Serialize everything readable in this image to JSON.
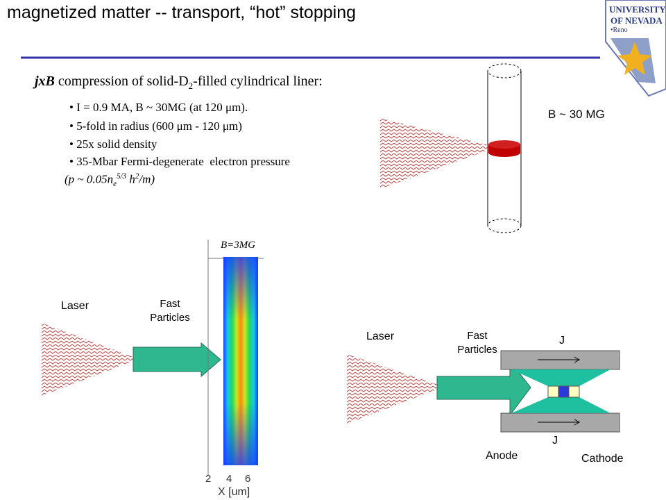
{
  "header": {
    "title": "magnetized matter -- transport, “hot” stopping",
    "logo": [
      "UNIVERSITY",
      "OF NEVADA",
      "•Reno"
    ]
  },
  "summary": {
    "heading": [
      "jxB",
      " compression of solid-D",
      "2",
      "-filled cylindrical liner:"
    ],
    "bullets": [
      "• I = 0.9 MA, B ~ 30MG (at 120 μm).",
      "• 5-fold in radius (600 μm - 120 μm)",
      "• 25x solid density",
      "• 35-Mbar Fermi-degenerate  electron pressure"
    ],
    "pressure": [
      "(p ~ 0.05n",
      "e",
      "5/3",
      " h",
      "2",
      "/m)"
    ]
  },
  "liner_diagram": {
    "field_label": "B ~ 30 MG"
  },
  "simulation": {
    "laser_label": "Laser",
    "particles_label": "Fast Particles",
    "field_label": "B=3MG",
    "axis_ticks": [
      "2",
      "4",
      "6"
    ],
    "axis_label": "X [um]"
  },
  "diode": {
    "laser_label": "Laser",
    "particles_label": "Fast Particles",
    "current_labels": [
      "J",
      "J"
    ],
    "anode_label": "Anode",
    "cathode_label": "Cathode"
  }
}
